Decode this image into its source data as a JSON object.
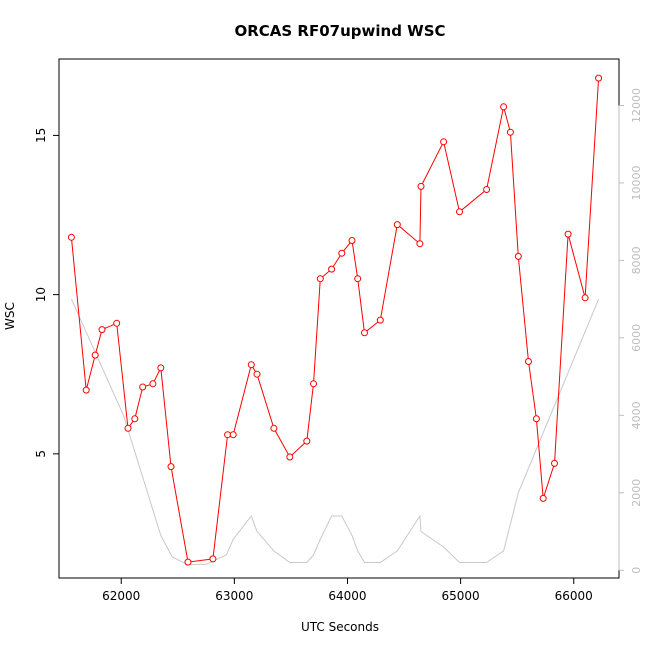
{
  "chart_data": {
    "type": "line",
    "title": "ORCAS RF07upwind WSC",
    "xlabel": "UTC Seconds",
    "ylabel": "WSC",
    "xlim": [
      61450,
      66400
    ],
    "ylim": [
      1.1,
      17.4
    ],
    "y2lim": [
      -200,
      13200
    ],
    "x_ticks": [
      62000,
      63000,
      64000,
      65000,
      66000
    ],
    "y_ticks": [
      5,
      10,
      15
    ],
    "y2_ticks": [
      0,
      2000,
      4000,
      6000,
      8000,
      10000,
      12000
    ],
    "grid": false,
    "colors": {
      "primary": "#ff0000",
      "secondary": "#c8c8c8"
    },
    "series": [
      {
        "axis": "left",
        "style": "line+points",
        "x": [
          61560,
          61690,
          61770,
          61830,
          61960,
          62060,
          62120,
          62190,
          62280,
          62350,
          62440,
          62590,
          62810,
          62940,
          62990,
          63150,
          63200,
          63350,
          63490,
          63640,
          63700,
          63760,
          63860,
          63950,
          64040,
          64090,
          64150,
          64290,
          64440,
          64640,
          64650,
          64850,
          64990,
          65230,
          65380,
          65440,
          65510,
          65600,
          65670,
          65730,
          65830,
          65950,
          66100,
          66220
        ],
        "y": [
          11.8,
          7.0,
          8.1,
          8.9,
          9.1,
          5.8,
          6.1,
          7.1,
          7.2,
          7.7,
          4.6,
          1.6,
          1.7,
          5.6,
          5.6,
          7.8,
          7.5,
          5.8,
          4.9,
          5.4,
          7.2,
          10.5,
          10.8,
          11.3,
          11.7,
          10.5,
          8.8,
          9.2,
          12.2,
          11.6,
          13.4,
          14.8,
          12.6,
          13.3,
          15.9,
          15.1,
          11.2,
          7.9,
          6.1,
          3.6,
          4.7,
          11.9,
          9.9,
          16.8
        ]
      },
      {
        "axis": "right",
        "style": "line",
        "x": [
          61560,
          62020,
          62350,
          62450,
          62580,
          62750,
          62860,
          62930,
          62990,
          63150,
          63200,
          63350,
          63490,
          63640,
          63700,
          63760,
          63860,
          63950,
          64040,
          64090,
          64150,
          64290,
          64440,
          64640,
          64650,
          64850,
          64990,
          65230,
          65380,
          65510,
          66220
        ],
        "y": [
          7000,
          4000,
          900,
          350,
          150,
          150,
          300,
          400,
          800,
          1400,
          1000,
          500,
          200,
          200,
          400,
          800,
          1400,
          1400,
          900,
          500,
          200,
          200,
          500,
          1400,
          1000,
          600,
          200,
          200,
          500,
          2000,
          7000
        ]
      }
    ]
  }
}
